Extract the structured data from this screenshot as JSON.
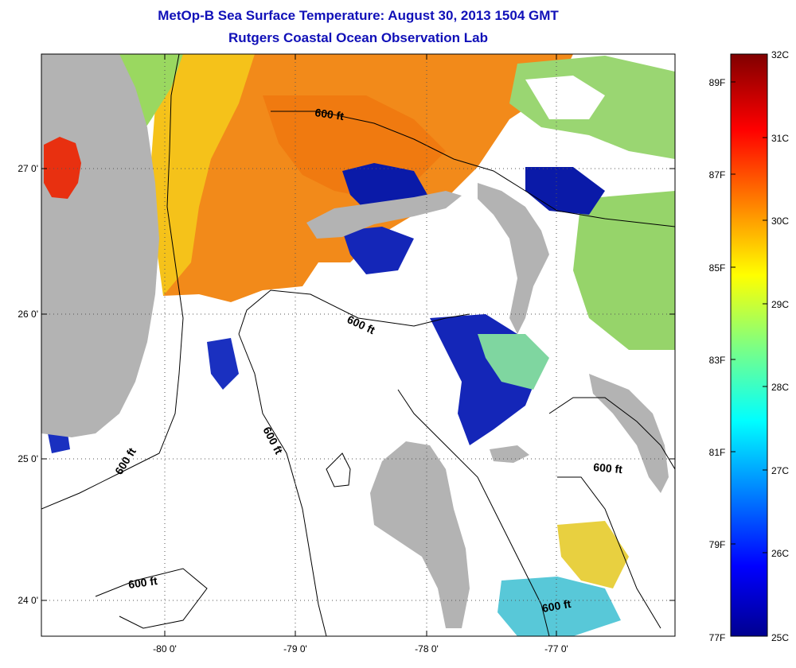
{
  "title": "MetOp-B Sea Surface Temperature:  August 30, 2013 1504 GMT",
  "subtitle": "Rutgers Coastal Ocean Observation Lab",
  "map": {
    "x_ticks": [
      "-80 0'",
      "-79 0'",
      "-78 0'",
      "-77 0'"
    ],
    "y_ticks": [
      "27 0'",
      "26 0'",
      "25 0'",
      "24 0'"
    ],
    "contour_labels": [
      "600 ft",
      "600 ft",
      "600 ft",
      "600 ft",
      "600 ft",
      "600 ft"
    ],
    "colors": {
      "land": "#b3b3b3",
      "ocean_nodata": "#ffffff",
      "grid": "#555555"
    }
  },
  "colorbar": {
    "celsius_labels": [
      "32C",
      "31C",
      "30C",
      "29C",
      "28C",
      "27C",
      "26C",
      "25C"
    ],
    "fahrenheit_labels": [
      "89F",
      "87F",
      "85F",
      "83F",
      "81F",
      "79F",
      "77F"
    ],
    "colormap": "jet"
  }
}
